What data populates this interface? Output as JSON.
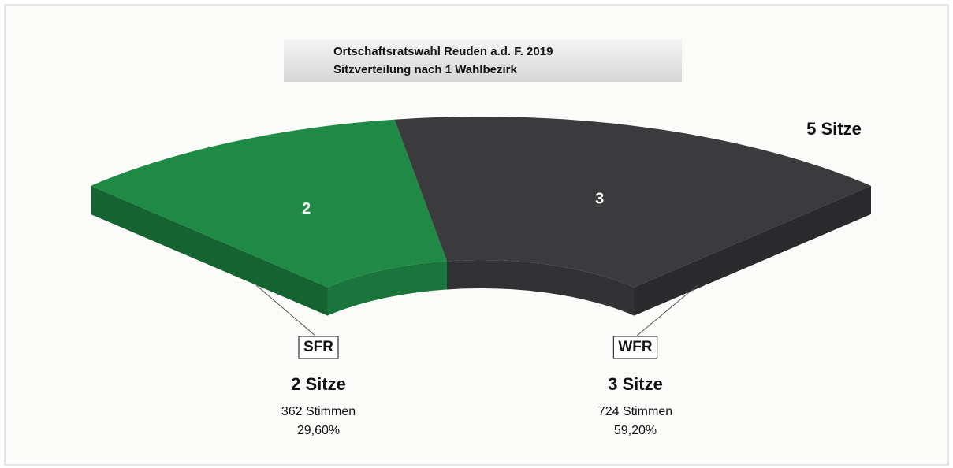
{
  "chart_data": {
    "type": "parliament",
    "title": "Ortschaftsratswahl Reuden a.d. F. 2019",
    "subtitle": "Sitzverteilung nach 1 Wahlbezirk",
    "total_label": "5 Sitze",
    "categories": [
      "SFR",
      "WFR"
    ],
    "values": [
      2,
      3
    ],
    "value_labels": [
      "2 Sitze",
      "3 Sitze"
    ],
    "vote_labels": [
      "362 Stimmen",
      "724 Stimmen"
    ],
    "share_labels": [
      "29,60%",
      "59,20%"
    ],
    "colors": [
      "#1e8a46",
      "#3b3b3d"
    ]
  }
}
